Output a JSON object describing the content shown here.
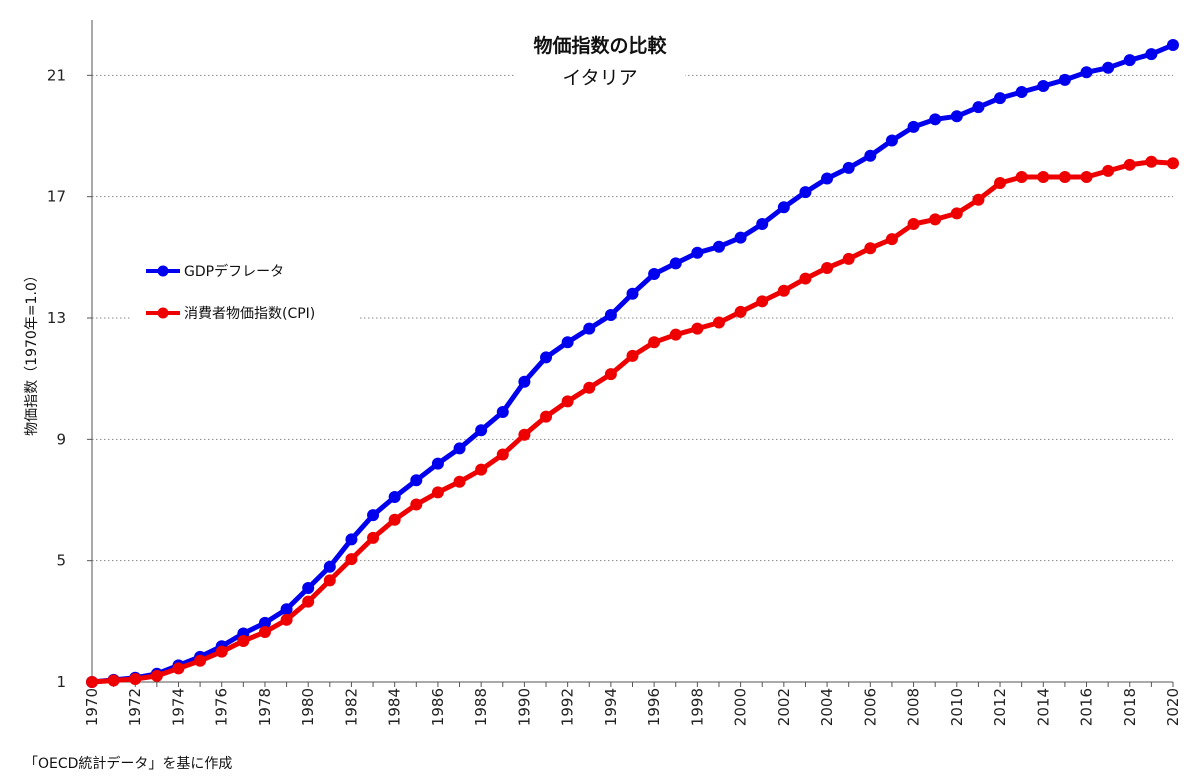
{
  "chart_data": {
    "type": "line",
    "title": "物価指数の比較",
    "subtitle": "イタリア",
    "ylabel": "物価指数（1970年=1.0）",
    "xlabel": "",
    "source": "「OECD統計データ」を基に作成",
    "ylim": [
      1,
      22
    ],
    "yticks": [
      1,
      5,
      9,
      13,
      17,
      21
    ],
    "xlim": [
      1970,
      2020
    ],
    "xticks": [
      1970,
      1972,
      1974,
      1976,
      1978,
      1980,
      1982,
      1984,
      1986,
      1988,
      1990,
      1992,
      1994,
      1996,
      1998,
      2000,
      2002,
      2004,
      2006,
      2008,
      2010,
      2012,
      2014,
      2016,
      2018,
      2020
    ],
    "grid": "horizontal dotted",
    "legend_position": "left",
    "x": [
      1970,
      1971,
      1972,
      1973,
      1974,
      1975,
      1976,
      1977,
      1978,
      1979,
      1980,
      1981,
      1982,
      1983,
      1984,
      1985,
      1986,
      1987,
      1988,
      1989,
      1990,
      1991,
      1992,
      1993,
      1994,
      1995,
      1996,
      1997,
      1998,
      1999,
      2000,
      2001,
      2002,
      2003,
      2004,
      2005,
      2006,
      2007,
      2008,
      2009,
      2010,
      2011,
      2012,
      2013,
      2014,
      2015,
      2016,
      2017,
      2018,
      2019,
      2020
    ],
    "series": [
      {
        "name": "GDPデフレータ",
        "color": "#0000ee",
        "values": [
          1.0,
          1.07,
          1.14,
          1.27,
          1.55,
          1.83,
          2.18,
          2.6,
          2.95,
          3.4,
          4.1,
          4.8,
          5.7,
          6.5,
          7.1,
          7.65,
          8.2,
          8.7,
          9.3,
          9.9,
          10.9,
          11.7,
          12.2,
          12.65,
          13.1,
          13.8,
          14.45,
          14.8,
          15.15,
          15.35,
          15.65,
          16.1,
          16.65,
          17.15,
          17.6,
          17.95,
          18.35,
          18.85,
          19.3,
          19.55,
          19.65,
          19.95,
          20.25,
          20.45,
          20.65,
          20.85,
          21.1,
          21.25,
          21.5,
          21.7,
          22.0
        ]
      },
      {
        "name": "消費者物価指数(CPI)",
        "color": "#ee0000",
        "values": [
          1.0,
          1.05,
          1.1,
          1.2,
          1.45,
          1.7,
          2.0,
          2.35,
          2.65,
          3.05,
          3.65,
          4.35,
          5.05,
          5.75,
          6.35,
          6.85,
          7.25,
          7.6,
          8.0,
          8.5,
          9.15,
          9.75,
          10.25,
          10.7,
          11.15,
          11.75,
          12.2,
          12.45,
          12.65,
          12.85,
          13.2,
          13.55,
          13.9,
          14.3,
          14.65,
          14.95,
          15.3,
          15.6,
          16.1,
          16.25,
          16.45,
          16.9,
          17.45,
          17.65,
          17.65,
          17.65,
          17.65,
          17.85,
          18.05,
          18.15,
          18.1
        ]
      }
    ]
  }
}
